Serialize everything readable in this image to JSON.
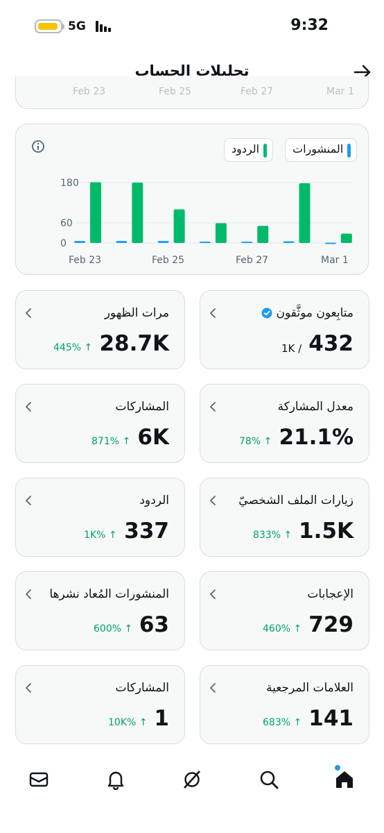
{
  "status_bar": {
    "network": "5G",
    "time": "9:32"
  },
  "header": {
    "title": "تحليلات الحساب"
  },
  "top_chart_ticks": [
    "Feb 23",
    "Feb 25",
    "Feb 27",
    "Mar 1"
  ],
  "legend": {
    "posts": "المنشورات",
    "replies": "الردود"
  },
  "colors": {
    "posts": "#1d9bf0",
    "replies": "#00ba6b",
    "accent_green": "#00a35c"
  },
  "chart_data": {
    "type": "bar",
    "categories": [
      "Feb 23",
      "Feb 24",
      "Feb 25",
      "Feb 26",
      "Feb 27",
      "Feb 28",
      "Mar 1"
    ],
    "x_tick_labels": [
      "Feb 23",
      "Feb 25",
      "Feb 27",
      "Mar 1"
    ],
    "y_tick_labels": [
      "180",
      "60",
      "0"
    ],
    "ylim": [
      0,
      180
    ],
    "series": [
      {
        "name": "المنشورات",
        "values": [
          6,
          6,
          6,
          4,
          4,
          5,
          1
        ]
      },
      {
        "name": "الردود",
        "values": [
          181,
          180,
          100,
          59,
          51,
          178,
          28
        ]
      }
    ]
  },
  "stats": [
    {
      "label": "متابِعون موثَّقون",
      "value": "432",
      "total": "1K /"
    },
    {
      "label": "مرات الظهور",
      "value": "28.7K",
      "change": "445% ↑"
    },
    {
      "label": "معدل المشاركة",
      "value": "21.1%",
      "change": "78% ↑"
    },
    {
      "label": "المشاركات",
      "value": "6K",
      "change": "871% ↑"
    },
    {
      "label": "زيارات الملف الشخصيّ",
      "value": "1.5K",
      "change": "833% ↑"
    },
    {
      "label": "الردود",
      "value": "337",
      "change": "1K% ↑"
    },
    {
      "label": "الإعجابات",
      "value": "729",
      "change": "460% ↑"
    },
    {
      "label": "المنشورات المُعاد نشرها",
      "value": "63",
      "change": "600% ↑"
    },
    {
      "label": "العلامات المرجعية",
      "value": "141",
      "change": "683% ↑"
    },
    {
      "label": "المشاركات",
      "value": "1",
      "change": "10K% ↑"
    }
  ],
  "nav": [
    "mail-icon",
    "bell-icon",
    "grok-icon",
    "search-icon",
    "home-icon"
  ]
}
